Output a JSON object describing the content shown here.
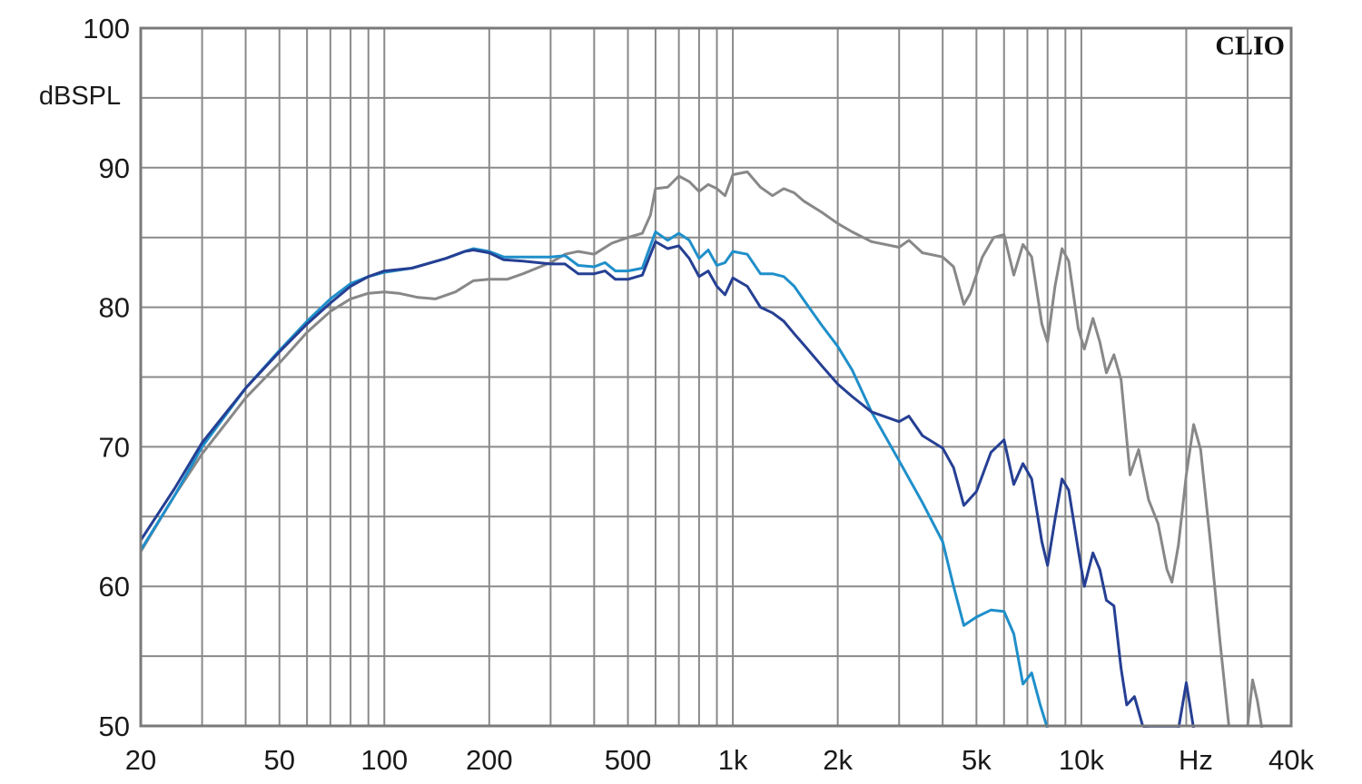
{
  "brand_label": "CLIO",
  "chart_data": {
    "type": "line",
    "x_scale": "log",
    "xlim": [
      20,
      40000
    ],
    "ylim": [
      50,
      100
    ],
    "ylabel": "dBSPL",
    "xunit": "Hz",
    "grid": true,
    "y_ticks": [
      {
        "value": 100,
        "label": "100"
      },
      {
        "value": 90,
        "label": "90"
      },
      {
        "value": 80,
        "label": "80"
      },
      {
        "value": 70,
        "label": "70"
      },
      {
        "value": 60,
        "label": "60"
      },
      {
        "value": 50,
        "label": "50"
      }
    ],
    "x_ticks": [
      {
        "value": 20,
        "label": "20"
      },
      {
        "value": 50,
        "label": "50"
      },
      {
        "value": 100,
        "label": "100"
      },
      {
        "value": 200,
        "label": "200"
      },
      {
        "value": 500,
        "label": "500"
      },
      {
        "value": 1000,
        "label": "1k"
      },
      {
        "value": 2000,
        "label": "2k"
      },
      {
        "value": 5000,
        "label": "5k"
      },
      {
        "value": 10000,
        "label": "10k"
      },
      {
        "value": 40000,
        "label": "40k"
      }
    ],
    "series": [
      {
        "color": "#888888",
        "points": [
          [
            20,
            62.5
          ],
          [
            25,
            66.5
          ],
          [
            30,
            69.5
          ],
          [
            40,
            73.5
          ],
          [
            50,
            76
          ],
          [
            60,
            78.2
          ],
          [
            70,
            79.7
          ],
          [
            80,
            80.6
          ],
          [
            90,
            81
          ],
          [
            100,
            81.1
          ],
          [
            110,
            81
          ],
          [
            125,
            80.7
          ],
          [
            140,
            80.6
          ],
          [
            160,
            81.1
          ],
          [
            180,
            81.9
          ],
          [
            200,
            82
          ],
          [
            225,
            82
          ],
          [
            250,
            82.4
          ],
          [
            280,
            82.9
          ],
          [
            300,
            83.2
          ],
          [
            330,
            83.8
          ],
          [
            360,
            84
          ],
          [
            400,
            83.8
          ],
          [
            450,
            84.6
          ],
          [
            500,
            85
          ],
          [
            550,
            85.3
          ],
          [
            580,
            86.6
          ],
          [
            600,
            88.5
          ],
          [
            650,
            88.6
          ],
          [
            700,
            89.4
          ],
          [
            750,
            89
          ],
          [
            800,
            88.3
          ],
          [
            850,
            88.8
          ],
          [
            900,
            88.5
          ],
          [
            950,
            88
          ],
          [
            1000,
            89.5
          ],
          [
            1100,
            89.7
          ],
          [
            1200,
            88.6
          ],
          [
            1300,
            88
          ],
          [
            1400,
            88.5
          ],
          [
            1500,
            88.2
          ],
          [
            1600,
            87.6
          ],
          [
            1800,
            86.8
          ],
          [
            2000,
            86
          ],
          [
            2200,
            85.4
          ],
          [
            2500,
            84.7
          ],
          [
            3000,
            84.3
          ],
          [
            3200,
            84.8
          ],
          [
            3500,
            83.9
          ],
          [
            4000,
            83.6
          ],
          [
            4300,
            82.9
          ],
          [
            4600,
            80.2
          ],
          [
            4800,
            81
          ],
          [
            5200,
            83.6
          ],
          [
            5600,
            85
          ],
          [
            6000,
            85.2
          ],
          [
            6400,
            82.3
          ],
          [
            6800,
            84.5
          ],
          [
            7200,
            83.6
          ],
          [
            7700,
            78.8
          ],
          [
            8000,
            77.5
          ],
          [
            8400,
            81.5
          ],
          [
            8800,
            84.2
          ],
          [
            9200,
            83.3
          ],
          [
            9800,
            78.5
          ],
          [
            10200,
            77
          ],
          [
            10800,
            79.2
          ],
          [
            11300,
            77.5
          ],
          [
            11800,
            75.3
          ],
          [
            12400,
            76.6
          ],
          [
            13000,
            74.8
          ],
          [
            13800,
            68
          ],
          [
            14600,
            69.8
          ],
          [
            15600,
            66.2
          ],
          [
            16600,
            64.5
          ],
          [
            17600,
            61.2
          ],
          [
            18200,
            60.3
          ],
          [
            19000,
            63
          ],
          [
            20000,
            68
          ],
          [
            21000,
            71.6
          ],
          [
            22000,
            69.8
          ],
          [
            23500,
            63
          ],
          [
            25000,
            56
          ],
          [
            26500,
            50
          ],
          [
            30000,
            50
          ],
          [
            31000,
            53.3
          ],
          [
            32000,
            51.8
          ],
          [
            33000,
            49.8
          ]
        ]
      },
      {
        "color": "#1f8fca",
        "points": [
          [
            20,
            62.6
          ],
          [
            25,
            66.5
          ],
          [
            30,
            70
          ],
          [
            40,
            74.2
          ],
          [
            50,
            76.9
          ],
          [
            60,
            79
          ],
          [
            70,
            80.6
          ],
          [
            80,
            81.7
          ],
          [
            90,
            82.2
          ],
          [
            100,
            82.5
          ],
          [
            120,
            82.8
          ],
          [
            150,
            83.5
          ],
          [
            170,
            84
          ],
          [
            180,
            84.2
          ],
          [
            200,
            84
          ],
          [
            220,
            83.6
          ],
          [
            250,
            83.6
          ],
          [
            300,
            83.6
          ],
          [
            330,
            83.7
          ],
          [
            360,
            83
          ],
          [
            400,
            82.9
          ],
          [
            430,
            83.2
          ],
          [
            460,
            82.6
          ],
          [
            500,
            82.6
          ],
          [
            550,
            82.8
          ],
          [
            600,
            85.4
          ],
          [
            650,
            84.8
          ],
          [
            700,
            85.3
          ],
          [
            750,
            84.8
          ],
          [
            800,
            83.5
          ],
          [
            850,
            84.1
          ],
          [
            900,
            83
          ],
          [
            950,
            83.2
          ],
          [
            1000,
            84
          ],
          [
            1100,
            83.8
          ],
          [
            1200,
            82.4
          ],
          [
            1300,
            82.4
          ],
          [
            1400,
            82.2
          ],
          [
            1500,
            81.5
          ],
          [
            1600,
            80.5
          ],
          [
            1800,
            78.7
          ],
          [
            2000,
            77.2
          ],
          [
            2200,
            75.5
          ],
          [
            2500,
            72.5
          ],
          [
            3000,
            69
          ],
          [
            3500,
            66
          ],
          [
            4000,
            63.2
          ],
          [
            4300,
            60
          ],
          [
            4600,
            57.2
          ],
          [
            5000,
            57.8
          ],
          [
            5500,
            58.3
          ],
          [
            6000,
            58.2
          ],
          [
            6400,
            56.6
          ],
          [
            6800,
            53
          ],
          [
            7200,
            53.8
          ],
          [
            7600,
            51.6
          ],
          [
            8000,
            49.8
          ]
        ]
      },
      {
        "color": "#253f93",
        "points": [
          [
            20,
            63.3
          ],
          [
            25,
            67
          ],
          [
            30,
            70.3
          ],
          [
            40,
            74.2
          ],
          [
            50,
            76.8
          ],
          [
            60,
            78.8
          ],
          [
            70,
            80.3
          ],
          [
            80,
            81.5
          ],
          [
            90,
            82.2
          ],
          [
            100,
            82.6
          ],
          [
            120,
            82.8
          ],
          [
            150,
            83.5
          ],
          [
            170,
            84
          ],
          [
            180,
            84.1
          ],
          [
            200,
            83.9
          ],
          [
            220,
            83.4
          ],
          [
            250,
            83.3
          ],
          [
            300,
            83.1
          ],
          [
            330,
            83.1
          ],
          [
            360,
            82.4
          ],
          [
            400,
            82.4
          ],
          [
            430,
            82.6
          ],
          [
            460,
            82
          ],
          [
            500,
            82
          ],
          [
            550,
            82.3
          ],
          [
            600,
            84.7
          ],
          [
            650,
            84.2
          ],
          [
            700,
            84.4
          ],
          [
            750,
            83.5
          ],
          [
            800,
            82.2
          ],
          [
            850,
            82.6
          ],
          [
            900,
            81.5
          ],
          [
            950,
            80.9
          ],
          [
            1000,
            82.1
          ],
          [
            1100,
            81.5
          ],
          [
            1200,
            80
          ],
          [
            1300,
            79.6
          ],
          [
            1400,
            79
          ],
          [
            1500,
            78.1
          ],
          [
            1600,
            77.3
          ],
          [
            1800,
            75.8
          ],
          [
            2000,
            74.5
          ],
          [
            2200,
            73.6
          ],
          [
            2500,
            72.5
          ],
          [
            3000,
            71.8
          ],
          [
            3200,
            72.2
          ],
          [
            3500,
            70.8
          ],
          [
            4000,
            69.9
          ],
          [
            4300,
            68.5
          ],
          [
            4600,
            65.8
          ],
          [
            5000,
            66.8
          ],
          [
            5500,
            69.6
          ],
          [
            6000,
            70.5
          ],
          [
            6400,
            67.3
          ],
          [
            6800,
            68.8
          ],
          [
            7200,
            67.7
          ],
          [
            7700,
            63.2
          ],
          [
            8000,
            61.5
          ],
          [
            8400,
            64.8
          ],
          [
            8800,
            67.7
          ],
          [
            9200,
            66.9
          ],
          [
            9800,
            62.6
          ],
          [
            10200,
            60
          ],
          [
            10800,
            62.4
          ],
          [
            11300,
            61.2
          ],
          [
            11800,
            59
          ],
          [
            12400,
            58.6
          ],
          [
            13000,
            54.1
          ],
          [
            13500,
            51.5
          ],
          [
            14200,
            52.1
          ],
          [
            15000,
            50
          ],
          [
            15500,
            49.8
          ],
          [
            19000,
            49.8
          ],
          [
            20000,
            53.1
          ],
          [
            21000,
            49.8
          ]
        ]
      }
    ]
  }
}
